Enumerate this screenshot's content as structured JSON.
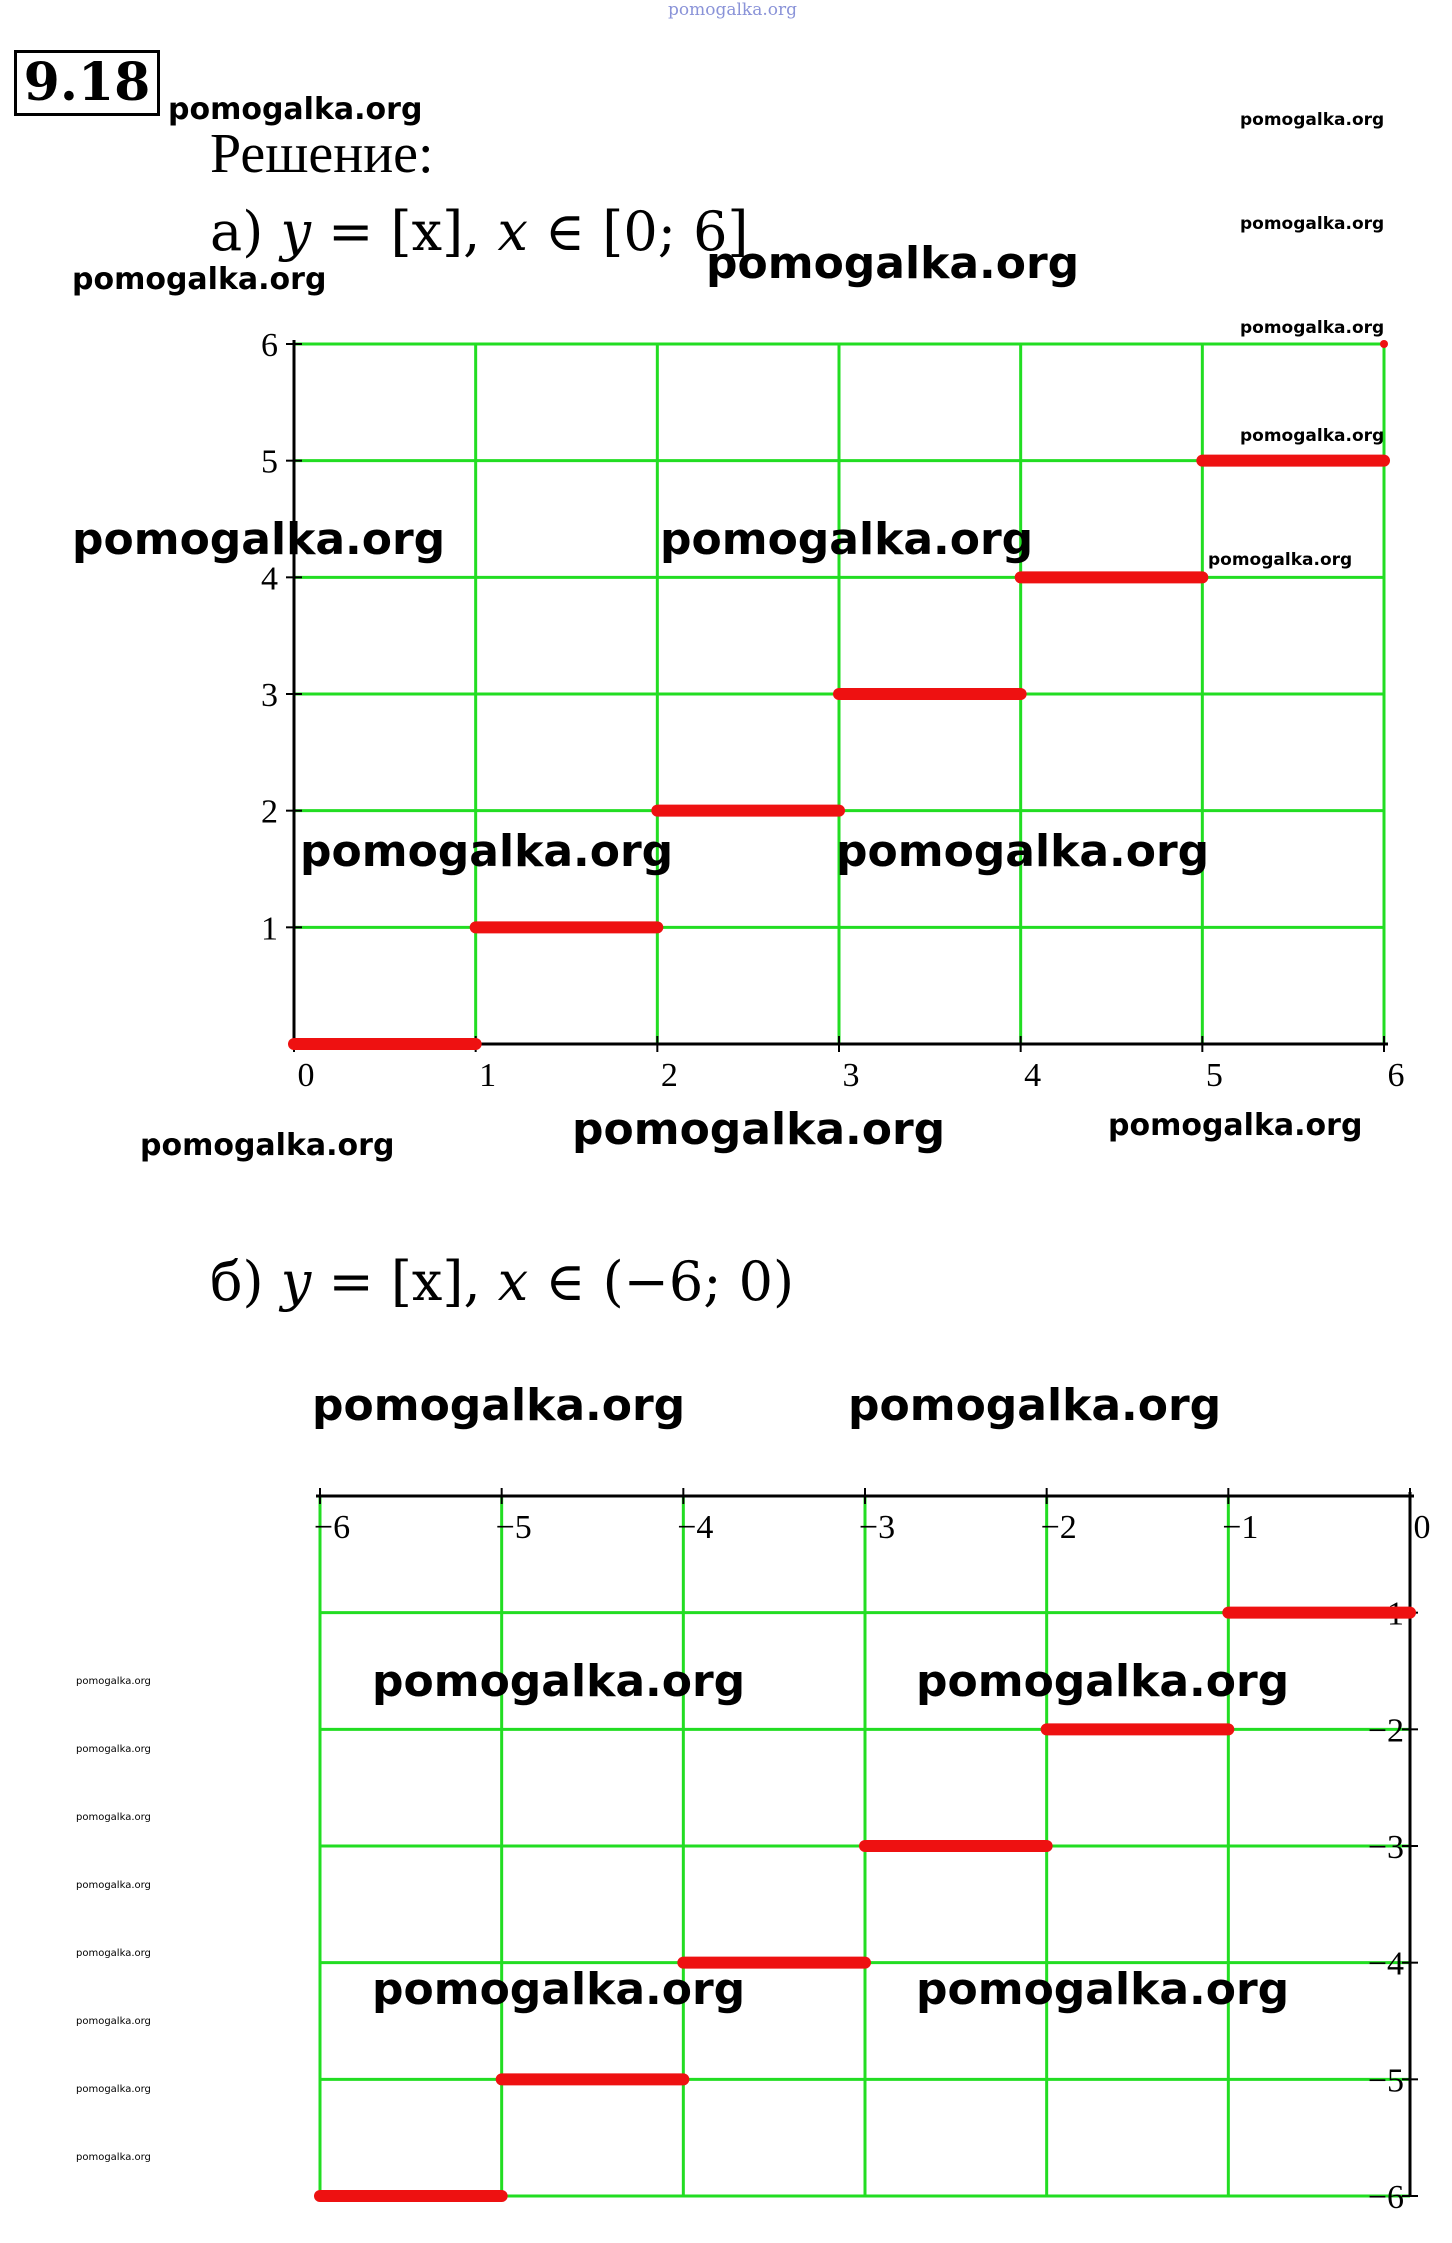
{
  "header": {
    "problem_number": "9.18",
    "solution_label": "Решение:",
    "top_watermark": "pomogalka.org"
  },
  "part_a": {
    "label": "а)",
    "formula_y": "y",
    "formula_eq": "=",
    "formula_floor": "[x]",
    "formula_sep": ",",
    "formula_x": "x",
    "formula_in": "∈",
    "formula_interval": "[0; 6]"
  },
  "part_b": {
    "label": "б)",
    "formula_y": "y",
    "formula_eq": "=",
    "formula_floor": "[x]",
    "formula_sep": ",",
    "formula_x": "x",
    "formula_in": "∈",
    "formula_interval": "(−6; 0)"
  },
  "watermark_text": "pomogalka.org",
  "colors": {
    "grid": "#22dd22",
    "series": "#ee1111",
    "axis": "#000000",
    "watermark_top": "#8a93d8"
  },
  "chart_data": [
    {
      "type": "line",
      "title": "",
      "xlabel": "",
      "ylabel": "",
      "xlim": [
        0,
        6
      ],
      "ylim": [
        0,
        6
      ],
      "x_ticks": [
        "0",
        "1",
        "2",
        "3",
        "4",
        "5",
        "6"
      ],
      "y_ticks": [
        "1",
        "2",
        "3",
        "4",
        "5",
        "6"
      ],
      "grid": true,
      "series": [
        {
          "segments": [
            {
              "x": [
                0,
                1
              ],
              "y": 0
            },
            {
              "x": [
                1,
                2
              ],
              "y": 1
            },
            {
              "x": [
                2,
                3
              ],
              "y": 2
            },
            {
              "x": [
                3,
                4
              ],
              "y": 3
            },
            {
              "x": [
                4,
                5
              ],
              "y": 4
            },
            {
              "x": [
                5,
                6
              ],
              "y": 5
            }
          ],
          "points": [
            {
              "x": 6,
              "y": 6
            }
          ]
        }
      ]
    },
    {
      "type": "line",
      "title": "",
      "xlabel": "",
      "ylabel": "",
      "xlim": [
        -6,
        0
      ],
      "ylim": [
        -6,
        0
      ],
      "x_ticks": [
        "−6",
        "−5",
        "−4",
        "−3",
        "−2",
        "−1",
        "0"
      ],
      "y_ticks": [
        "−1",
        "−2",
        "−3",
        "−4",
        "−5",
        "−6"
      ],
      "grid": true,
      "series": [
        {
          "segments": [
            {
              "x": [
                -6,
                -5
              ],
              "y": -6
            },
            {
              "x": [
                -5,
                -4
              ],
              "y": -5
            },
            {
              "x": [
                -4,
                -3
              ],
              "y": -4
            },
            {
              "x": [
                -3,
                -2
              ],
              "y": -3
            },
            {
              "x": [
                -2,
                -1
              ],
              "y": -2
            },
            {
              "x": [
                -1,
                0
              ],
              "y": -1
            }
          ],
          "points": []
        }
      ]
    }
  ]
}
